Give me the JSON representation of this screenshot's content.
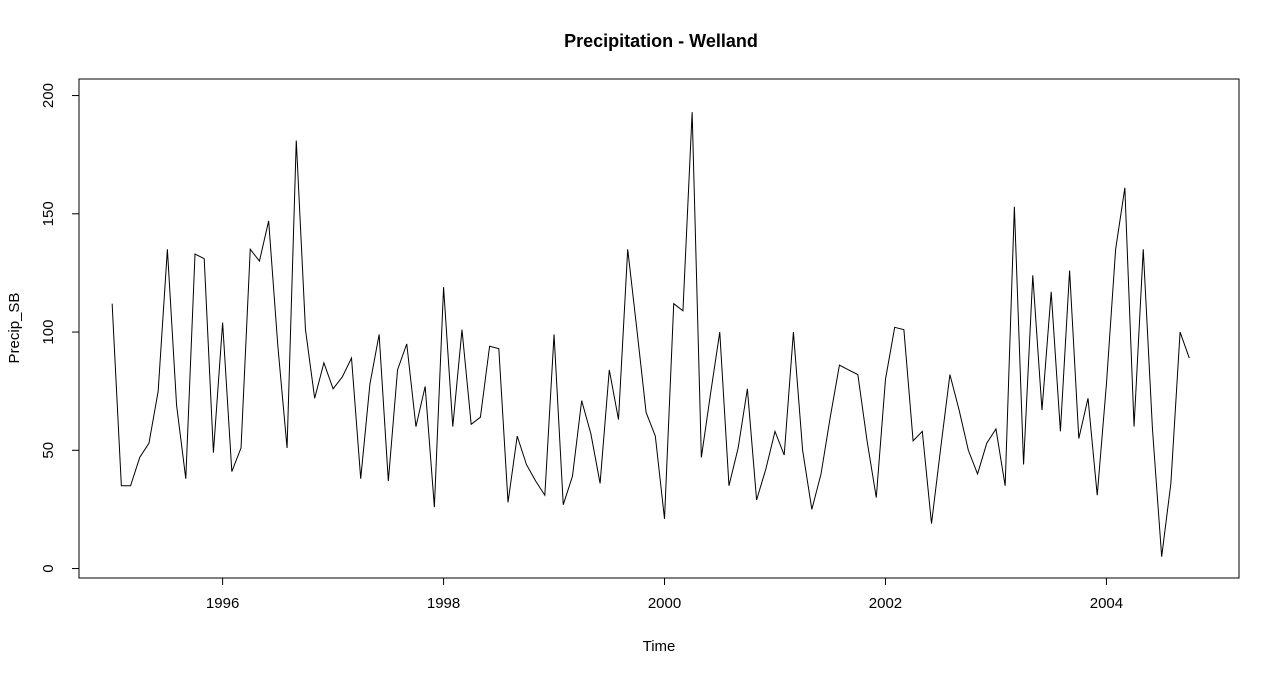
{
  "chart_data": {
    "type": "line",
    "title": "Precipitation - Welland",
    "xlabel": "Time",
    "ylabel": "Precip_SB",
    "xlim": [
      1994.7,
      2005.2
    ],
    "ylim": [
      -4,
      207
    ],
    "x_ticks": [
      1996,
      1998,
      2000,
      2002,
      2004
    ],
    "x_tick_labels": [
      "1996",
      "1998",
      "2000",
      "2002",
      "2004"
    ],
    "y_ticks": [
      0,
      50,
      100,
      150,
      200
    ],
    "y_tick_labels": [
      "0",
      "50",
      "100",
      "150",
      "200"
    ],
    "grid": false,
    "start": 1995.0,
    "frequency": 12,
    "series": [
      {
        "color": "#000000",
        "values": [
          112,
          35,
          35,
          47,
          53,
          75,
          135,
          69,
          38,
          133,
          131,
          49,
          104,
          41,
          51,
          135,
          130,
          147,
          94,
          51,
          181,
          101,
          72,
          87,
          76,
          81,
          89,
          38,
          78,
          99,
          37,
          84,
          95,
          60,
          77,
          26,
          119,
          60,
          101,
          61,
          64,
          94,
          93,
          28,
          56,
          44,
          37,
          31,
          99,
          27,
          39,
          71,
          57,
          36,
          84,
          63,
          135,
          101,
          66,
          56,
          21,
          112,
          109,
          193,
          47,
          74,
          100,
          35,
          51,
          76,
          29,
          42,
          58,
          48,
          100,
          50,
          25,
          40,
          64,
          86,
          84,
          82,
          54,
          30,
          80,
          102,
          101,
          54,
          58,
          19,
          51,
          82,
          67,
          50,
          40,
          53,
          59,
          35,
          153,
          44,
          124,
          67,
          117,
          58,
          126,
          55,
          72,
          31,
          78,
          135,
          161,
          60,
          135,
          59,
          5,
          36,
          100,
          89
        ]
      }
    ]
  }
}
